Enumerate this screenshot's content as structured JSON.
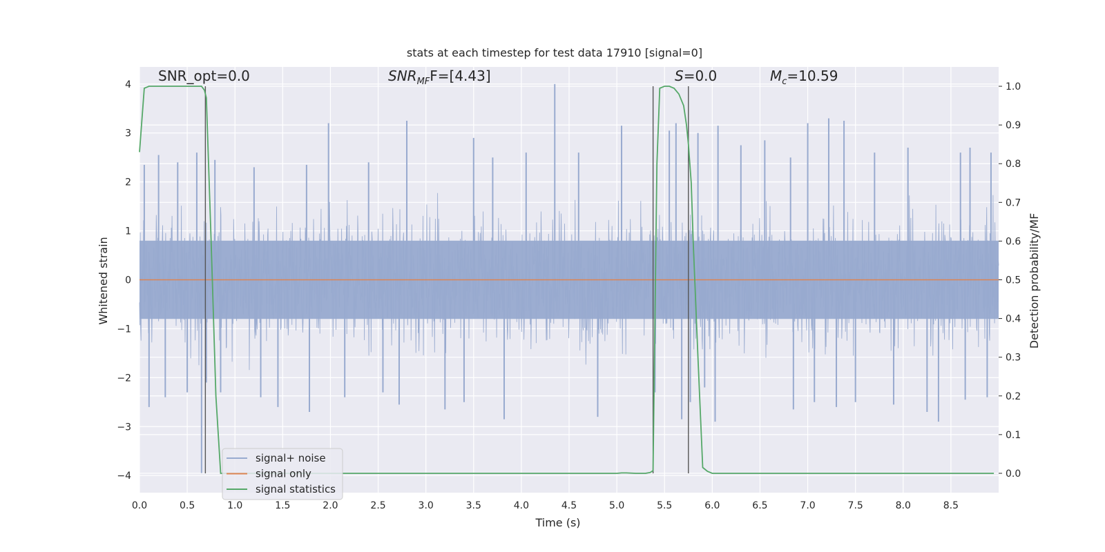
{
  "chart_data": {
    "type": "line",
    "title": "stats at each timestep for test data 17910 [signal=0]",
    "xlabel": "Time (s)",
    "ylabel": "Whitened strain",
    "ylabel_right": "Detection probability/MF",
    "xlim": [
      0,
      9.0
    ],
    "ylim": [
      -4.35,
      4.35
    ],
    "ylim_right": [
      -0.05,
      1.05
    ],
    "x_ticks": [
      "0.0",
      "0.5",
      "1.0",
      "1.5",
      "2.0",
      "2.5",
      "3.0",
      "3.5",
      "4.0",
      "4.5",
      "5.0",
      "5.5",
      "6.0",
      "6.5",
      "7.0",
      "7.5",
      "8.0",
      "8.5"
    ],
    "y_ticks_left": [
      "4",
      "3",
      "2",
      "1",
      "0",
      "−1",
      "−2",
      "−3",
      "−4"
    ],
    "y_ticks_left_values": [
      4,
      3,
      2,
      1,
      0,
      -1,
      -2,
      -3,
      -4
    ],
    "y_ticks_right": [
      "1.0",
      "0.9",
      "0.8",
      "0.7",
      "0.6",
      "0.5",
      "0.4",
      "0.3",
      "0.2",
      "0.1",
      "0.0"
    ],
    "y_ticks_right_values": [
      1.0,
      0.9,
      0.8,
      0.7,
      0.6,
      0.5,
      0.4,
      0.3,
      0.2,
      0.1,
      0.0
    ],
    "grid": true,
    "legend_position": "bottom-left",
    "annotations": {
      "snr_opt": "SNR_opt=0.0",
      "snr_mf_main": "SNR",
      "snr_mf_sub": "MF",
      "snr_mf_tail": "F=[4.43]",
      "s_stat_symbol": "S",
      "s_stat_tail": "=0.0",
      "mc_symbol": "M",
      "mc_sub": "c",
      "mc_tail": "=10.59"
    },
    "vertical_lines_x": [
      0.69,
      5.38,
      5.75
    ],
    "series": [
      {
        "name": "signal+ noise",
        "axis": "left",
        "color": "#98aacf",
        "description_stats": {
          "core_amplitude": 0.8,
          "band_amplitude": 1.6,
          "max_peak": 4.0,
          "min_peak": -3.95
        },
        "spikes": [
          {
            "x": 0.05,
            "y": 2.35
          },
          {
            "x": 0.1,
            "y": -2.6
          },
          {
            "x": 0.2,
            "y": 2.55
          },
          {
            "x": 0.27,
            "y": -2.4
          },
          {
            "x": 0.4,
            "y": 2.4
          },
          {
            "x": 0.5,
            "y": -2.3
          },
          {
            "x": 0.6,
            "y": 2.6
          },
          {
            "x": 0.65,
            "y": -3.95
          },
          {
            "x": 0.7,
            "y": -2.1
          },
          {
            "x": 0.79,
            "y": 2.45
          },
          {
            "x": 0.85,
            "y": -2.3
          },
          {
            "x": 1.2,
            "y": 2.3
          },
          {
            "x": 1.27,
            "y": -2.4
          },
          {
            "x": 1.45,
            "y": -2.6
          },
          {
            "x": 1.75,
            "y": 2.35
          },
          {
            "x": 1.78,
            "y": -2.7
          },
          {
            "x": 1.98,
            "y": 3.2
          },
          {
            "x": 2.15,
            "y": -2.4
          },
          {
            "x": 2.4,
            "y": 2.4
          },
          {
            "x": 2.55,
            "y": -2.3
          },
          {
            "x": 2.72,
            "y": -2.55
          },
          {
            "x": 2.8,
            "y": 3.25
          },
          {
            "x": 3.2,
            "y": -2.65
          },
          {
            "x": 3.4,
            "y": -2.5
          },
          {
            "x": 3.5,
            "y": 2.9
          },
          {
            "x": 3.82,
            "y": -2.85
          },
          {
            "x": 3.7,
            "y": 2.5
          },
          {
            "x": 4.05,
            "y": 2.6
          },
          {
            "x": 4.35,
            "y": 4.0
          },
          {
            "x": 4.6,
            "y": 2.6
          },
          {
            "x": 4.8,
            "y": -2.8
          },
          {
            "x": 5.05,
            "y": 3.15
          },
          {
            "x": 5.4,
            "y": -2.3
          },
          {
            "x": 5.55,
            "y": 3.05
          },
          {
            "x": 5.62,
            "y": 3.2
          },
          {
            "x": 5.68,
            "y": -2.85
          },
          {
            "x": 5.77,
            "y": -2.5
          },
          {
            "x": 5.85,
            "y": 3.0
          },
          {
            "x": 5.92,
            "y": -2.2
          },
          {
            "x": 6.03,
            "y": -2.9
          },
          {
            "x": 6.06,
            "y": 3.15
          },
          {
            "x": 6.3,
            "y": 2.75
          },
          {
            "x": 6.55,
            "y": 2.85
          },
          {
            "x": 6.82,
            "y": 2.5
          },
          {
            "x": 6.85,
            "y": -2.65
          },
          {
            "x": 7.0,
            "y": 3.2
          },
          {
            "x": 7.07,
            "y": -2.5
          },
          {
            "x": 7.22,
            "y": 3.3
          },
          {
            "x": 7.3,
            "y": -2.6
          },
          {
            "x": 7.38,
            "y": 3.25
          },
          {
            "x": 7.5,
            "y": -2.5
          },
          {
            "x": 7.7,
            "y": 2.6
          },
          {
            "x": 7.9,
            "y": -2.55
          },
          {
            "x": 8.05,
            "y": 2.7
          },
          {
            "x": 8.25,
            "y": -2.7
          },
          {
            "x": 8.37,
            "y": -2.9
          },
          {
            "x": 8.6,
            "y": 2.6
          },
          {
            "x": 8.65,
            "y": -2.45
          },
          {
            "x": 8.7,
            "y": 2.7
          },
          {
            "x": 8.88,
            "y": -2.4
          },
          {
            "x": 8.92,
            "y": 2.6
          }
        ]
      },
      {
        "name": "signal only",
        "axis": "left",
        "color": "#dd8452",
        "x": [
          0,
          9.0
        ],
        "y": [
          0,
          0
        ]
      },
      {
        "name": "signal statistics",
        "axis": "right",
        "color": "#55a868",
        "x": [
          0,
          0.05,
          0.1,
          0.2,
          0.3,
          0.4,
          0.5,
          0.6,
          0.65,
          0.68,
          0.7,
          0.75,
          0.8,
          0.85,
          1.0,
          2.0,
          3.0,
          4.0,
          5.0,
          5.05,
          5.1,
          5.2,
          5.3,
          5.35,
          5.38,
          5.42,
          5.45,
          5.5,
          5.55,
          5.6,
          5.65,
          5.7,
          5.73,
          5.75,
          5.78,
          5.8,
          5.85,
          5.9,
          5.95,
          6.0,
          6.5,
          7.0,
          8.0,
          8.95
        ],
        "y": [
          0.83,
          0.995,
          1.0,
          1.0,
          1.0,
          1.0,
          1.0,
          1.0,
          1.0,
          0.99,
          0.97,
          0.6,
          0.2,
          0.0,
          0.0,
          0.0,
          0.0,
          0.0,
          0.0,
          0.001,
          0.001,
          0.0,
          0.0,
          0.002,
          0.007,
          0.8,
          0.995,
          1.0,
          1.0,
          0.995,
          0.98,
          0.95,
          0.9,
          0.85,
          0.75,
          0.6,
          0.3,
          0.015,
          0.005,
          0.0,
          0.0,
          0.0,
          0.0,
          0.0
        ]
      }
    ]
  }
}
